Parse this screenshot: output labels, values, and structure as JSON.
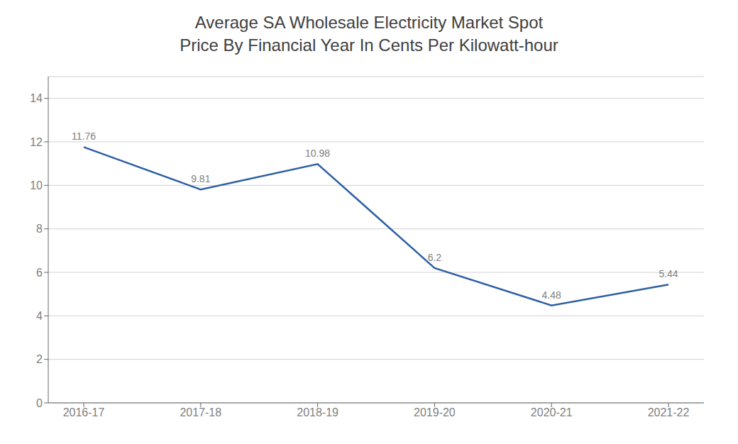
{
  "chart_data": {
    "type": "line",
    "title": "Average SA Wholesale Electricity Market Spot\nPrice By Financial Year In Cents Per Kilowatt-hour",
    "categories": [
      "2016-17",
      "2017-18",
      "2018-19",
      "2019-20",
      "2020-21",
      "2021-22"
    ],
    "values": [
      11.76,
      9.81,
      10.98,
      6.2,
      4.48,
      5.44
    ],
    "color": "#2E5FA3",
    "ylim": [
      0,
      15
    ],
    "yticks": [
      0,
      2,
      4,
      6,
      8,
      10,
      12,
      14
    ],
    "grid": true,
    "data_labels": true
  }
}
